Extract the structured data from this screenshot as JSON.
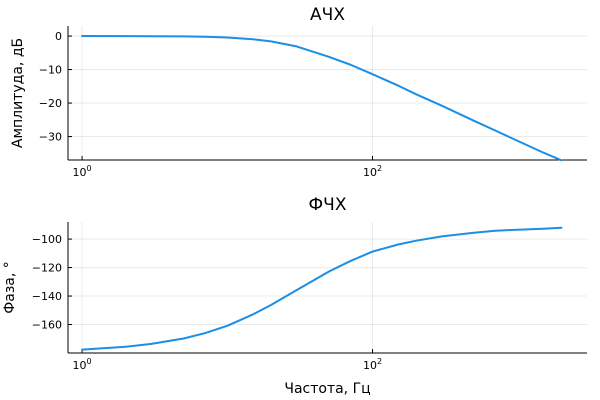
{
  "chart_data": [
    {
      "type": "line",
      "title": "АЧХ",
      "xlabel": "",
      "ylabel": "Амплитуда, дБ",
      "xscale": "log",
      "xlim": [
        0.8,
        3000
      ],
      "ylim": [
        -37,
        3
      ],
      "x_ticks": [
        {
          "base": "10",
          "exp": "0",
          "value": 1
        },
        {
          "base": "10",
          "exp": "2",
          "value": 100
        }
      ],
      "y_ticks": [
        0,
        -10,
        -20,
        -30
      ],
      "grid": true,
      "legend": "none",
      "line_color": "#1b8ee6",
      "series": [
        {
          "x": [
            1,
            2,
            3,
            5,
            7,
            10,
            15,
            20,
            30,
            50,
            70,
            100,
            150,
            200,
            300,
            500,
            700,
            1000,
            1500,
            2000
          ],
          "y": [
            0.0,
            -0.02,
            -0.04,
            -0.11,
            -0.21,
            -0.43,
            -0.94,
            -1.6,
            -3.1,
            -6.2,
            -8.5,
            -11.4,
            -14.8,
            -17.4,
            -20.8,
            -25.3,
            -28.2,
            -31.3,
            -34.8,
            -37.1
          ]
        }
      ]
    },
    {
      "type": "line",
      "title": "ФЧХ",
      "xlabel": "Частота, Гц",
      "ylabel": "Фаза, °",
      "xscale": "log",
      "xlim": [
        0.8,
        3000
      ],
      "ylim": [
        -180,
        -88
      ],
      "x_ticks": [
        {
          "base": "10",
          "exp": "0",
          "value": 1
        },
        {
          "base": "10",
          "exp": "2",
          "value": 100
        }
      ],
      "y_ticks": [
        -100,
        -120,
        -140,
        -160
      ],
      "grid": true,
      "legend": "none",
      "line_color": "#1b8ee6",
      "series": [
        {
          "x": [
            1,
            2,
            3,
            5,
            7,
            10,
            15,
            20,
            30,
            50,
            70,
            100,
            150,
            200,
            300,
            500,
            700,
            1000,
            1500,
            2000
          ],
          "y": [
            -177.6,
            -175.6,
            -173.6,
            -169.8,
            -166.1,
            -160.9,
            -152.9,
            -146.3,
            -135.8,
            -122.8,
            -115.5,
            -108.8,
            -103.8,
            -101.1,
            -98.1,
            -95.6,
            -94.2,
            -93.4,
            -92.7,
            -92.1
          ]
        }
      ]
    }
  ]
}
